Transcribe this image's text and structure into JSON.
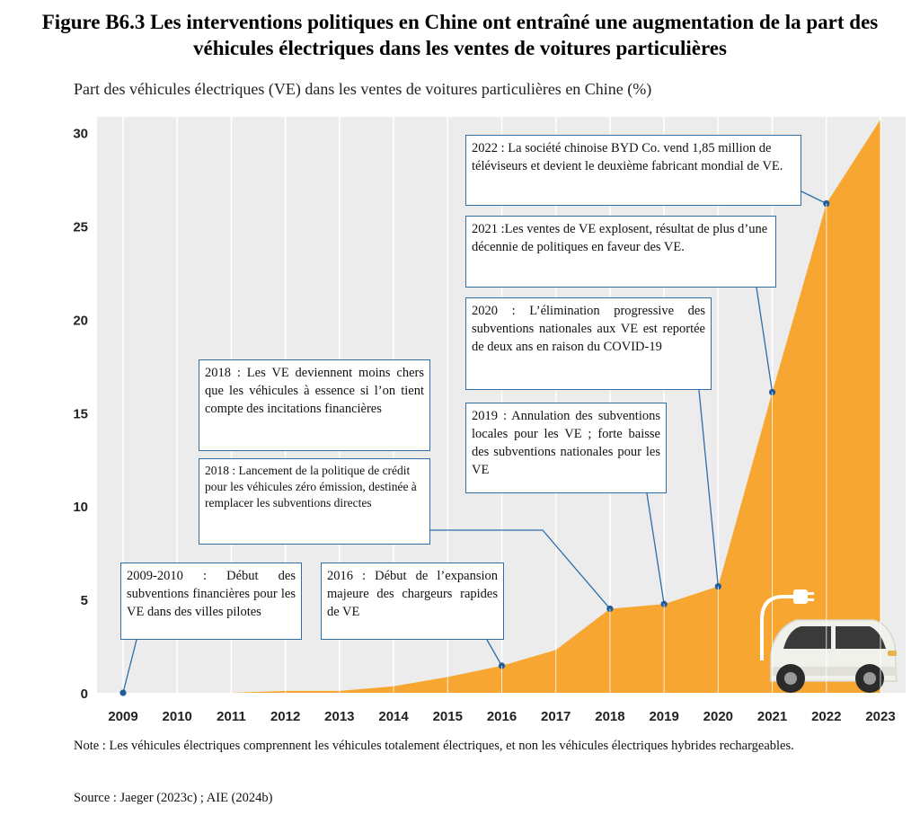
{
  "title": "Figure B6.3 Les interventions politiques en Chine ont entraîné une augmentation de la part des véhicules électriques dans les ventes de voitures particulières",
  "subtitle": "Part des véhicules électriques (VE) dans les ventes de voitures particulières en Chine (%)",
  "note": "Note : Les véhicules électriques comprennent les véhicules totalement électriques, et non les véhicules électriques hybrides rechargeables.",
  "source": "Source : Jaeger (2023c) ; AIE (2024b)",
  "colors": {
    "area": "#F7A731",
    "line": "#2f6ea6",
    "point": "#1f5c99",
    "grid": "#ffffff",
    "axis_bg": "#ececec"
  },
  "icons": {
    "car": "electric-car-icon",
    "plug": "charging-plug-icon"
  },
  "annotations": [
    {
      "id": "a2009",
      "text": "2009-2010 : Début des subventions financières pour les VE dans des villes pilotes"
    },
    {
      "id": "a2016",
      "text": "2016 : Début de l’expansion majeure des chargeurs rapides de VE"
    },
    {
      "id": "a2018b",
      "text": "2018 : Lancement de la politique de crédit pour les véhicules zéro émission, destinée à remplacer les subventions directes"
    },
    {
      "id": "a2018a",
      "text": "2018 : Les VE deviennent moins chers que les véhicules à essence si l’on tient compte des incitations financières"
    },
    {
      "id": "a2019",
      "text": "2019 : Annulation des subventions locales pour les VE ; forte baisse des subventions nationales pour les VE"
    },
    {
      "id": "a2020",
      "text": "2020 : L’élimination progressive des subventions nationales aux VE est reportée de deux ans en raison du COVID-19"
    },
    {
      "id": "a2021",
      "text": "2021 :Les ventes de VE explosent, résultat de plus d’une décennie de politiques en faveur des VE."
    },
    {
      "id": "a2022",
      "text": "2022 : La société chinoise BYD Co. vend 1,85 million de téléviseurs et devient le deuxième fabricant mondial de VE."
    }
  ],
  "chart_data": {
    "type": "area",
    "x": [
      2009,
      2010,
      2011,
      2012,
      2013,
      2014,
      2015,
      2016,
      2017,
      2018,
      2019,
      2020,
      2021,
      2022,
      2023
    ],
    "values": [
      0,
      0,
      0,
      0.1,
      0.1,
      0.35,
      0.85,
      1.45,
      2.3,
      4.5,
      4.75,
      5.7,
      16.1,
      26.2,
      30.7
    ],
    "marked_points": [
      2009,
      2016,
      2018,
      2019,
      2020,
      2021,
      2022
    ],
    "xticks": [
      "2009",
      "2010",
      "2011",
      "2012",
      "2013",
      "2014",
      "2015",
      "2016",
      "2017",
      "2018",
      "2019",
      "2020",
      "2021",
      "2022",
      "2023"
    ],
    "yticks": [
      "0",
      "5",
      "10",
      "15",
      "20",
      "25",
      "30"
    ],
    "ylim": [
      0,
      30.7
    ],
    "grid": true,
    "title": "Part des véhicules électriques (VE) dans les ventes de voitures particulières en Chine (%)"
  }
}
